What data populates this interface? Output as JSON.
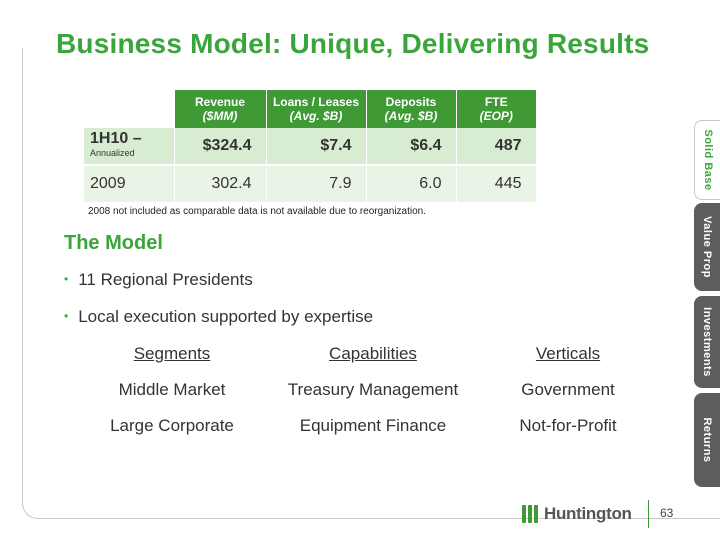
{
  "title": "Business Model: Unique, Delivering Results",
  "table": {
    "headers": [
      {
        "line1": "Revenue",
        "line2": "($MM)"
      },
      {
        "line1": "Loans / Leases",
        "line2": "(Avg. $B)"
      },
      {
        "line1": "Deposits",
        "line2": "(Avg. $B)"
      },
      {
        "line1": "FTE",
        "line2": "(EOP)"
      }
    ],
    "rows": [
      {
        "label": "1H10 –",
        "note": "Annualized",
        "values": [
          "$324.4",
          "$7.4",
          "$6.4",
          "487"
        ]
      },
      {
        "label": "2009",
        "note": "",
        "values": [
          "302.4",
          "7.9",
          "6.0",
          "445"
        ]
      }
    ]
  },
  "footnote": "2008 not included as comparable data is not available due to reorganization.",
  "model": {
    "title": "The Model",
    "bullets": [
      "11 Regional Presidents",
      "Local execution supported by expertise"
    ]
  },
  "columns": [
    {
      "header": "Segments",
      "items": [
        "Middle Market",
        "Large Corporate"
      ]
    },
    {
      "header": "Capabilities",
      "items": [
        "Treasury Management",
        "Equipment Finance"
      ]
    },
    {
      "header": "Verticals",
      "items": [
        "Government",
        "Not-for-Profit"
      ]
    }
  ],
  "tabs": [
    "Solid Base",
    "Value Prop",
    "Investments",
    "Returns"
  ],
  "logo": {
    "text": "Huntington"
  },
  "page_number": "63",
  "colors": {
    "accent_green": "#3aa53a",
    "header_green": "#3f9a35",
    "row1_bg": "#d8ecd2",
    "row2_bg": "#eaf4e6",
    "tab_gray": "#5d5d5d"
  }
}
